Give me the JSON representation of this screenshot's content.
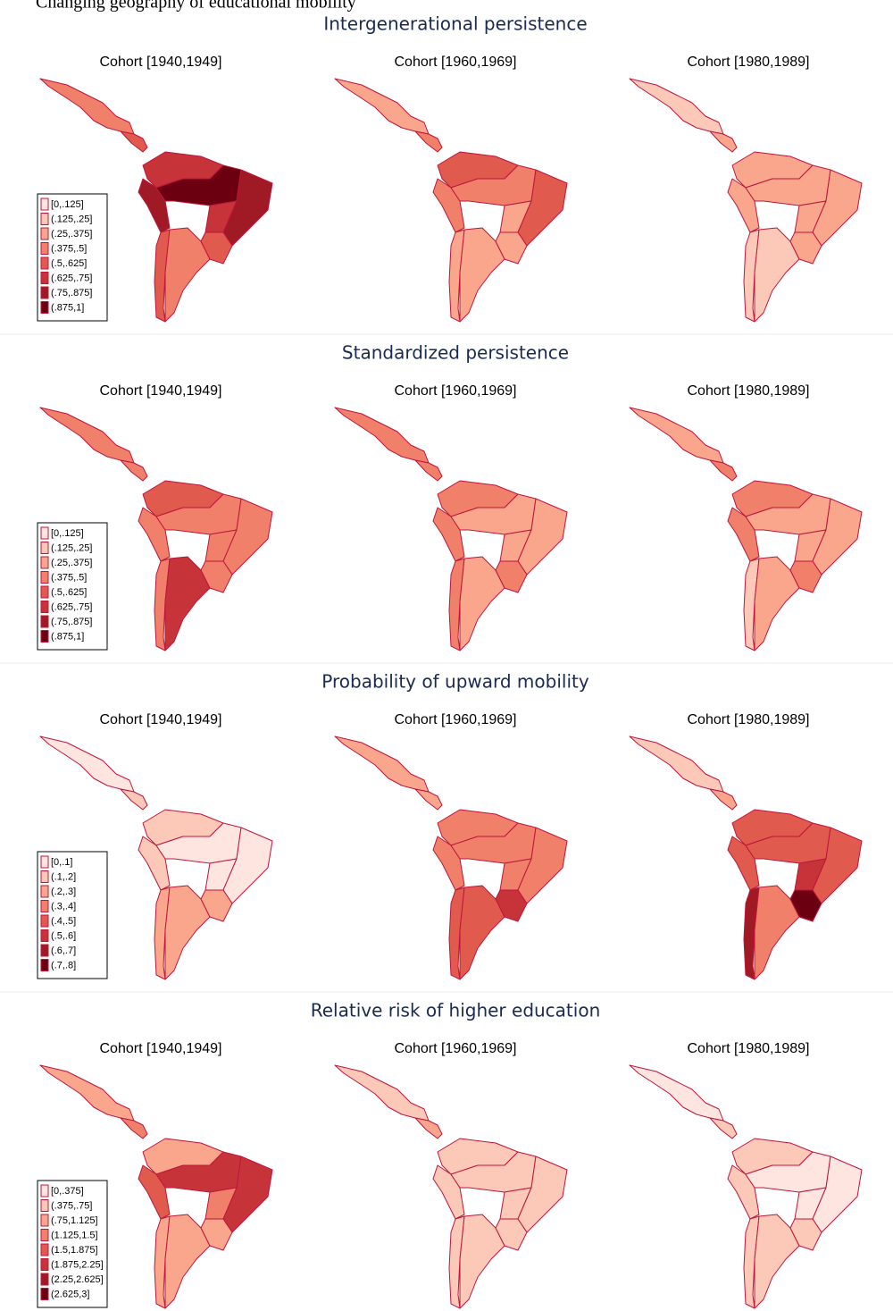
{
  "caption": "Changing geography of educational mobility",
  "colors": [
    "#fee5df",
    "#fcc8b8",
    "#f9a68d",
    "#f0806a",
    "#e05a4e",
    "#c6343a",
    "#a01a25",
    "#6b0010"
  ],
  "panels": [
    {
      "title": "Intergenerational persistence",
      "legend": [
        "[0,.125]",
        "(.125,.25]",
        "(.25,.375]",
        "(.375,.5]",
        "(.5,.625]",
        "(.625,.75]",
        "(.75,.875]",
        "(.875,1]"
      ],
      "maps": [
        {
          "cohort": "Cohort [1940,1949]",
          "levels": [
            3,
            4,
            5,
            6,
            7,
            5,
            6,
            4,
            3,
            4
          ]
        },
        {
          "cohort": "Cohort [1960,1969]",
          "levels": [
            2,
            3,
            4,
            3,
            3,
            2,
            4,
            2,
            2,
            2
          ]
        },
        {
          "cohort": "Cohort [1980,1989]",
          "levels": [
            1,
            2,
            2,
            2,
            2,
            2,
            2,
            1,
            1,
            2
          ]
        }
      ]
    },
    {
      "title": "Standardized persistence",
      "legend": [
        "[0,.125]",
        "(.125,.25]",
        "(.25,.375]",
        "(.375,.5]",
        "(.5,.625]",
        "(.625,.75]",
        "(.75,.875]",
        "(.875,1]"
      ],
      "maps": [
        {
          "cohort": "Cohort [1940,1949]",
          "levels": [
            3,
            3,
            4,
            3,
            3,
            3,
            3,
            3,
            5,
            3
          ]
        },
        {
          "cohort": "Cohort [1960,1969]",
          "levels": [
            3,
            3,
            3,
            3,
            2,
            2,
            2,
            3,
            2,
            3
          ]
        },
        {
          "cohort": "Cohort [1980,1989]",
          "levels": [
            2,
            3,
            3,
            3,
            2,
            2,
            2,
            1,
            2,
            3
          ]
        }
      ]
    },
    {
      "title": "Probability of upward mobility",
      "legend": [
        "[0,.1]",
        "(.1,.2]",
        "(.2,.3]",
        "(.3,.4]",
        "(.4,.5]",
        "(.5,.6]",
        "(.6,.7]",
        "(.7,.8]"
      ],
      "maps": [
        {
          "cohort": "Cohort [1940,1949]",
          "levels": [
            0,
            1,
            1,
            1,
            0,
            0,
            0,
            2,
            2,
            2
          ]
        },
        {
          "cohort": "Cohort [1960,1969]",
          "levels": [
            2,
            2,
            3,
            3,
            3,
            3,
            3,
            4,
            4,
            5
          ]
        },
        {
          "cohort": "Cohort [1980,1989]",
          "levels": [
            1,
            2,
            4,
            4,
            4,
            5,
            4,
            6,
            3,
            7
          ]
        }
      ]
    },
    {
      "title": "Relative risk of higher education",
      "legend": [
        "[0,.375]",
        "(.375,.75]",
        "(.75,1.125]",
        "(1.125,1.5]",
        "(1.5,1.875]",
        "(1.875,2.25]",
        "(2.25,2.625]",
        "(2.625,3]"
      ],
      "maps": [
        {
          "cohort": "Cohort [1940,1949]",
          "levels": [
            2,
            3,
            2,
            4,
            5,
            3,
            5,
            2,
            2,
            2
          ]
        },
        {
          "cohort": "Cohort [1960,1969]",
          "levels": [
            1,
            2,
            1,
            1,
            1,
            1,
            1,
            1,
            1,
            1
          ]
        },
        {
          "cohort": "Cohort [1980,1989]",
          "levels": [
            0,
            1,
            1,
            1,
            0,
            0,
            0,
            1,
            1,
            1
          ]
        }
      ]
    }
  ]
}
